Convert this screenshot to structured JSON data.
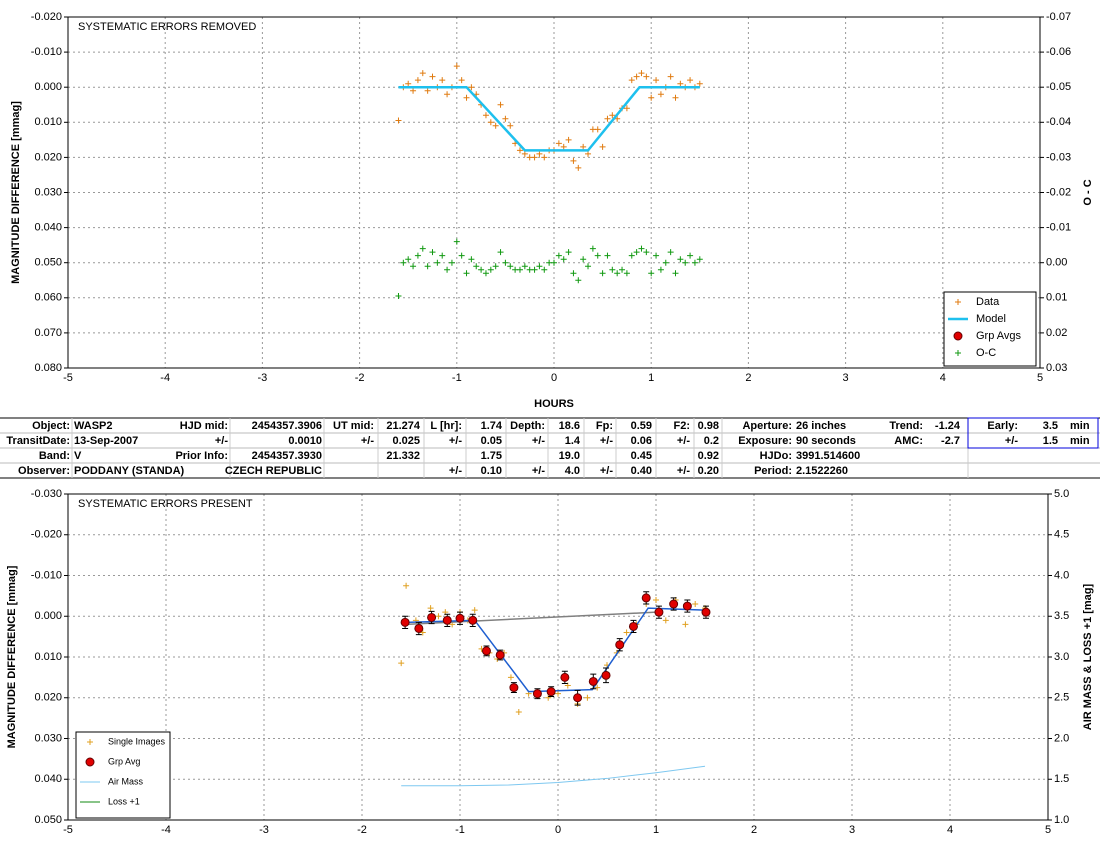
{
  "chart_data": [
    {
      "type": "scatter",
      "title": "SYSTEMATIC ERRORS REMOVED",
      "x_label": "HOURS",
      "y_label": "MAGNITUDE DIFFERENCE [mmag]",
      "y2_label": "O - C",
      "xlim": [
        -5,
        5
      ],
      "xticks": [
        -5,
        -4,
        -3,
        -2,
        -1,
        0,
        1,
        2,
        3,
        4,
        5
      ],
      "ylim": [
        -0.02,
        0.08
      ],
      "y_inverted": true,
      "yticks": [
        {
          "value": -0.02,
          "label": "-0.020"
        },
        {
          "value": -0.01,
          "label": "-0.010"
        },
        {
          "value": 0,
          "label": "0.000"
        },
        {
          "value": 0.01,
          "label": "0.010"
        },
        {
          "value": 0.02,
          "label": "0.020"
        },
        {
          "value": 0.03,
          "label": "0.030"
        },
        {
          "value": 0.04,
          "label": "0.040"
        },
        {
          "value": 0.05,
          "label": "0.050"
        },
        {
          "value": 0.06,
          "label": "0.060"
        },
        {
          "value": 0.07,
          "label": "0.070"
        },
        {
          "value": 0.08,
          "label": "0.080"
        }
      ],
      "y2lim": [
        -0.07,
        0.03
      ],
      "y2_inverted": true,
      "y2ticks": [
        {
          "value": -0.07,
          "label": "-0.07"
        },
        {
          "value": -0.06,
          "label": "-0.06"
        },
        {
          "value": -0.05,
          "label": "-0.05"
        },
        {
          "value": -0.04,
          "label": "-0.04"
        },
        {
          "value": -0.03,
          "label": "-0.03"
        },
        {
          "value": -0.02,
          "label": "-0.02"
        },
        {
          "value": -0.01,
          "label": "-0.01"
        },
        {
          "value": 0,
          "label": "0.00"
        },
        {
          "value": 0.01,
          "label": "0.01"
        },
        {
          "value": 0.02,
          "label": "0.02"
        },
        {
          "value": 0.03,
          "label": "0.03"
        }
      ],
      "grid": true,
      "legend": "lower right",
      "series": [
        {
          "name": "Data",
          "type": "scatter",
          "marker": "plus",
          "color": "#e07b10",
          "x": [
            -1.6,
            -1.55,
            -1.5,
            -1.45,
            -1.4,
            -1.35,
            -1.3,
            -1.25,
            -1.2,
            -1.15,
            -1.1,
            -1.05,
            -1,
            -0.95,
            -0.9,
            -0.85,
            -0.8,
            -0.75,
            -0.7,
            -0.65,
            -0.6,
            -0.55,
            -0.5,
            -0.45,
            -0.4,
            -0.35,
            -0.3,
            -0.25,
            -0.2,
            -0.15,
            -0.1,
            -0.05,
            0,
            0.05,
            0.1,
            0.15,
            0.2,
            0.25,
            0.3,
            0.35,
            0.4,
            0.45,
            0.5,
            0.55,
            0.6,
            0.65,
            0.7,
            0.75,
            0.8,
            0.85,
            0.9,
            0.95,
            1,
            1.05,
            1.1,
            1.15,
            1.2,
            1.25,
            1.3,
            1.35,
            1.4,
            1.45,
            1.5
          ],
          "values": [
            0.0095,
            0,
            -0.001,
            0.001,
            -0.002,
            -0.004,
            0.001,
            -0.003,
            0,
            -0.002,
            0.002,
            0,
            -0.006,
            -0.002,
            0.003,
            0,
            0.002,
            0.005,
            0.008,
            0.01,
            0.011,
            0.005,
            0.009,
            0.011,
            0.016,
            0.018,
            0.019,
            0.02,
            0.02,
            0.019,
            0.02,
            0.018,
            0.018,
            0.016,
            0.017,
            0.015,
            0.021,
            0.023,
            0.017,
            0.019,
            0.012,
            0.012,
            0.017,
            0.009,
            0.008,
            0.009,
            0.006,
            0.006,
            -0.002,
            -0.003,
            -0.004,
            -0.003,
            0.003,
            -0.002,
            0.002,
            0,
            -0.003,
            0.003,
            -0.001,
            0,
            -0.002,
            0,
            -0.001
          ]
        },
        {
          "name": "Model",
          "type": "line",
          "color": "#1ec0ee",
          "x": [
            -1.6,
            -0.9,
            -0.3,
            0.35,
            0.88,
            1.5
          ],
          "values": [
            0,
            0,
            0.018,
            0.018,
            0,
            0
          ]
        },
        {
          "name": "Grp Avgs",
          "type": "scatter",
          "marker": "circle",
          "color": "#e00000",
          "x": [],
          "values": []
        },
        {
          "name": "O-C",
          "type": "scatter",
          "marker": "plus",
          "color": "#119911",
          "axis": "y2",
          "x": [
            -1.6,
            -1.55,
            -1.5,
            -1.45,
            -1.4,
            -1.35,
            -1.3,
            -1.25,
            -1.2,
            -1.15,
            -1.1,
            -1.05,
            -1,
            -0.95,
            -0.9,
            -0.85,
            -0.8,
            -0.75,
            -0.7,
            -0.65,
            -0.6,
            -0.55,
            -0.5,
            -0.45,
            -0.4,
            -0.35,
            -0.3,
            -0.25,
            -0.2,
            -0.15,
            -0.1,
            -0.05,
            0,
            0.05,
            0.1,
            0.15,
            0.2,
            0.25,
            0.3,
            0.35,
            0.4,
            0.45,
            0.5,
            0.55,
            0.6,
            0.65,
            0.7,
            0.75,
            0.8,
            0.85,
            0.9,
            0.95,
            1,
            1.05,
            1.1,
            1.15,
            1.2,
            1.25,
            1.3,
            1.35,
            1.4,
            1.45,
            1.5
          ],
          "values": [
            0.0095,
            0,
            -0.001,
            0.001,
            -0.002,
            -0.004,
            0.001,
            -0.003,
            0,
            -0.002,
            0.002,
            0,
            -0.006,
            -0.002,
            0.003,
            -0.001,
            0.001,
            0.002,
            0.003,
            0.002,
            0.001,
            -0.003,
            0,
            0.001,
            0.002,
            0.002,
            0.001,
            0.002,
            0.002,
            0.001,
            0.002,
            0,
            0,
            -0.002,
            -0.001,
            -0.003,
            0.003,
            0.005,
            -0.001,
            0.001,
            -0.004,
            -0.002,
            0.003,
            -0.002,
            0.002,
            0.003,
            0.002,
            0.003,
            -0.002,
            -0.003,
            -0.004,
            -0.003,
            0.003,
            -0.002,
            0.002,
            0,
            -0.003,
            0.003,
            -0.001,
            0,
            -0.002,
            0,
            -0.001
          ]
        }
      ]
    },
    {
      "type": "scatter",
      "title": "SYSTEMATIC ERRORS PRESENT",
      "y_label": "MAGNITUDE DIFFERENCE [mmag]",
      "y2_label": "AIR MASS & LOSS +1 [mag]",
      "xlim": [
        -5,
        5
      ],
      "xticks": [
        -5,
        -4,
        -3,
        -2,
        -1,
        0,
        1,
        2,
        3,
        4,
        5
      ],
      "ylim": [
        -0.03,
        0.05
      ],
      "y_inverted": true,
      "yticks": [
        {
          "value": -0.03,
          "label": "-0.030"
        },
        {
          "value": -0.02,
          "label": "-0.020"
        },
        {
          "value": -0.01,
          "label": "-0.010"
        },
        {
          "value": 0,
          "label": "0.000"
        },
        {
          "value": 0.01,
          "label": "0.010"
        },
        {
          "value": 0.02,
          "label": "0.020"
        },
        {
          "value": 0.03,
          "label": "0.030"
        },
        {
          "value": 0.04,
          "label": "0.040"
        },
        {
          "value": 0.05,
          "label": "0.050"
        }
      ],
      "y2lim": [
        1,
        5
      ],
      "y2_inverted": false,
      "y2ticks": [
        {
          "value": 1,
          "label": "1.0"
        },
        {
          "value": 1.5,
          "label": "1.5"
        },
        {
          "value": 2,
          "label": "2.0"
        },
        {
          "value": 2.5,
          "label": "2.5"
        },
        {
          "value": 3,
          "label": "3.0"
        },
        {
          "value": 3.5,
          "label": "3.5"
        },
        {
          "value": 4,
          "label": "4.0"
        },
        {
          "value": 4.5,
          "label": "4.5"
        },
        {
          "value": 5,
          "label": "5.0"
        }
      ],
      "grid": true,
      "legend": "lower left",
      "series": [
        {
          "name": "Single Images",
          "type": "scatter",
          "marker": "plus",
          "color": "#e0a020",
          "x": [
            -1.6,
            -1.55,
            -1.45,
            -1.38,
            -1.3,
            -1.22,
            -1.15,
            -1.08,
            -1,
            -0.92,
            -0.85,
            -0.78,
            -0.7,
            -0.62,
            -0.55,
            -0.48,
            -0.4,
            -0.3,
            -0.2,
            -0.1,
            0,
            0.1,
            0.2,
            0.3,
            0.4,
            0.5,
            0.6,
            0.7,
            0.8,
            0.9,
            1,
            1.1,
            1.2,
            1.3,
            1.4,
            1.5
          ],
          "values": [
            0.0115,
            -0.0075,
            0.001,
            0.004,
            -0.002,
            0,
            -0.001,
            0.002,
            -0.001,
            0.001,
            -0.0015,
            0.008,
            0.009,
            0.0105,
            0.009,
            0.015,
            0.0235,
            0.019,
            0.0195,
            0.02,
            0.019,
            0.017,
            0.0215,
            0.02,
            0.0175,
            0.012,
            0.009,
            0.004,
            0.002,
            -0.003,
            -0.004,
            0.001,
            -0.004,
            0.002,
            -0.003,
            -0.002
          ]
        },
        {
          "type": "line",
          "color": "#808080",
          "x": [
            -1.55,
            1
          ],
          "values": [
            0.002,
            -0.001
          ]
        },
        {
          "type": "line",
          "color": "#1f5fd0",
          "x": [
            -1.55,
            -0.85,
            -0.3,
            0.35,
            0.92,
            1.5
          ],
          "values": [
            0.0015,
            0.001,
            0.0185,
            0.018,
            -0.002,
            -0.0015
          ]
        },
        {
          "name": "Grp Avg",
          "type": "scatter",
          "marker": "circle",
          "color": "#e00000",
          "x": [
            -1.56,
            -1.42,
            -1.29,
            -1.13,
            -1,
            -0.87,
            -0.73,
            -0.59,
            -0.45,
            -0.21,
            -0.07,
            0.07,
            0.2,
            0.36,
            0.49,
            0.63,
            0.77,
            0.9,
            1.03,
            1.18,
            1.32,
            1.51
          ],
          "values": [
            0.0015,
            0.003,
            0.0003,
            0.001,
            0.0005,
            0.001,
            0.0085,
            0.0095,
            0.0175,
            0.019,
            0.0185,
            0.015,
            0.02,
            0.016,
            0.0145,
            0.007,
            0.0025,
            -0.0045,
            -0.001,
            -0.003,
            -0.0025,
            -0.001
          ],
          "errors": [
            0.0015,
            0.0015,
            0.0015,
            0.0015,
            0.0015,
            0.0015,
            0.0012,
            0.0012,
            0.0012,
            0.0012,
            0.0012,
            0.0015,
            0.0018,
            0.0018,
            0.0018,
            0.0015,
            0.0015,
            0.0015,
            0.0015,
            0.0015,
            0.0015,
            0.0015
          ]
        },
        {
          "name": "Air Mass",
          "type": "line",
          "color": "#7ec8f0",
          "axis": "y2",
          "x": [
            -1.6,
            -1,
            -0.5,
            0,
            0.5,
            1,
            1.5
          ],
          "values": [
            1.42,
            1.42,
            1.43,
            1.46,
            1.51,
            1.58,
            1.66
          ]
        },
        {
          "name": "Loss +1",
          "type": "line",
          "color": "#118811",
          "axis": "y2",
          "x": [],
          "values": []
        }
      ]
    }
  ],
  "table": {
    "rows": [
      [
        "Object:",
        "WASP2",
        "HJD mid:",
        "2454357.3906",
        "UT mid:",
        "21.274",
        "L [hr]:",
        "1.74",
        "Depth:",
        "18.6",
        "Fp:",
        "0.59",
        "F2:",
        "0.98",
        "Aperture:",
        "26 inches",
        "Trend:",
        "-1.24",
        "Early:",
        "3.5",
        "min"
      ],
      [
        "TransitDate:",
        "13-Sep-2007",
        "+/-",
        "0.0010",
        "+/-",
        "0.025",
        "+/-",
        "0.05",
        "+/-",
        "1.4",
        "+/-",
        "0.06",
        "+/-",
        "0.2",
        "Exposure:",
        "90 seconds",
        "AMC:",
        "-2.7",
        "+/-",
        "1.5",
        "min"
      ],
      [
        "Band:",
        "V",
        "Prior Info:",
        "2454357.3930",
        null,
        "21.332",
        null,
        "1.75",
        null,
        "19.0",
        null,
        "0.45",
        null,
        "0.92",
        "HJDo:",
        "3991.514600",
        null,
        null,
        null,
        null,
        null
      ],
      [
        "Observer:",
        "PODDANY (STANDA)",
        null,
        "CZECH REPUBLIC",
        null,
        null,
        "+/-",
        "0.10",
        "+/-",
        "4.0",
        "+/-",
        "0.40",
        "+/-",
        "0.20",
        "Period:",
        "2.1522260",
        null,
        null,
        null,
        null,
        null
      ]
    ]
  }
}
